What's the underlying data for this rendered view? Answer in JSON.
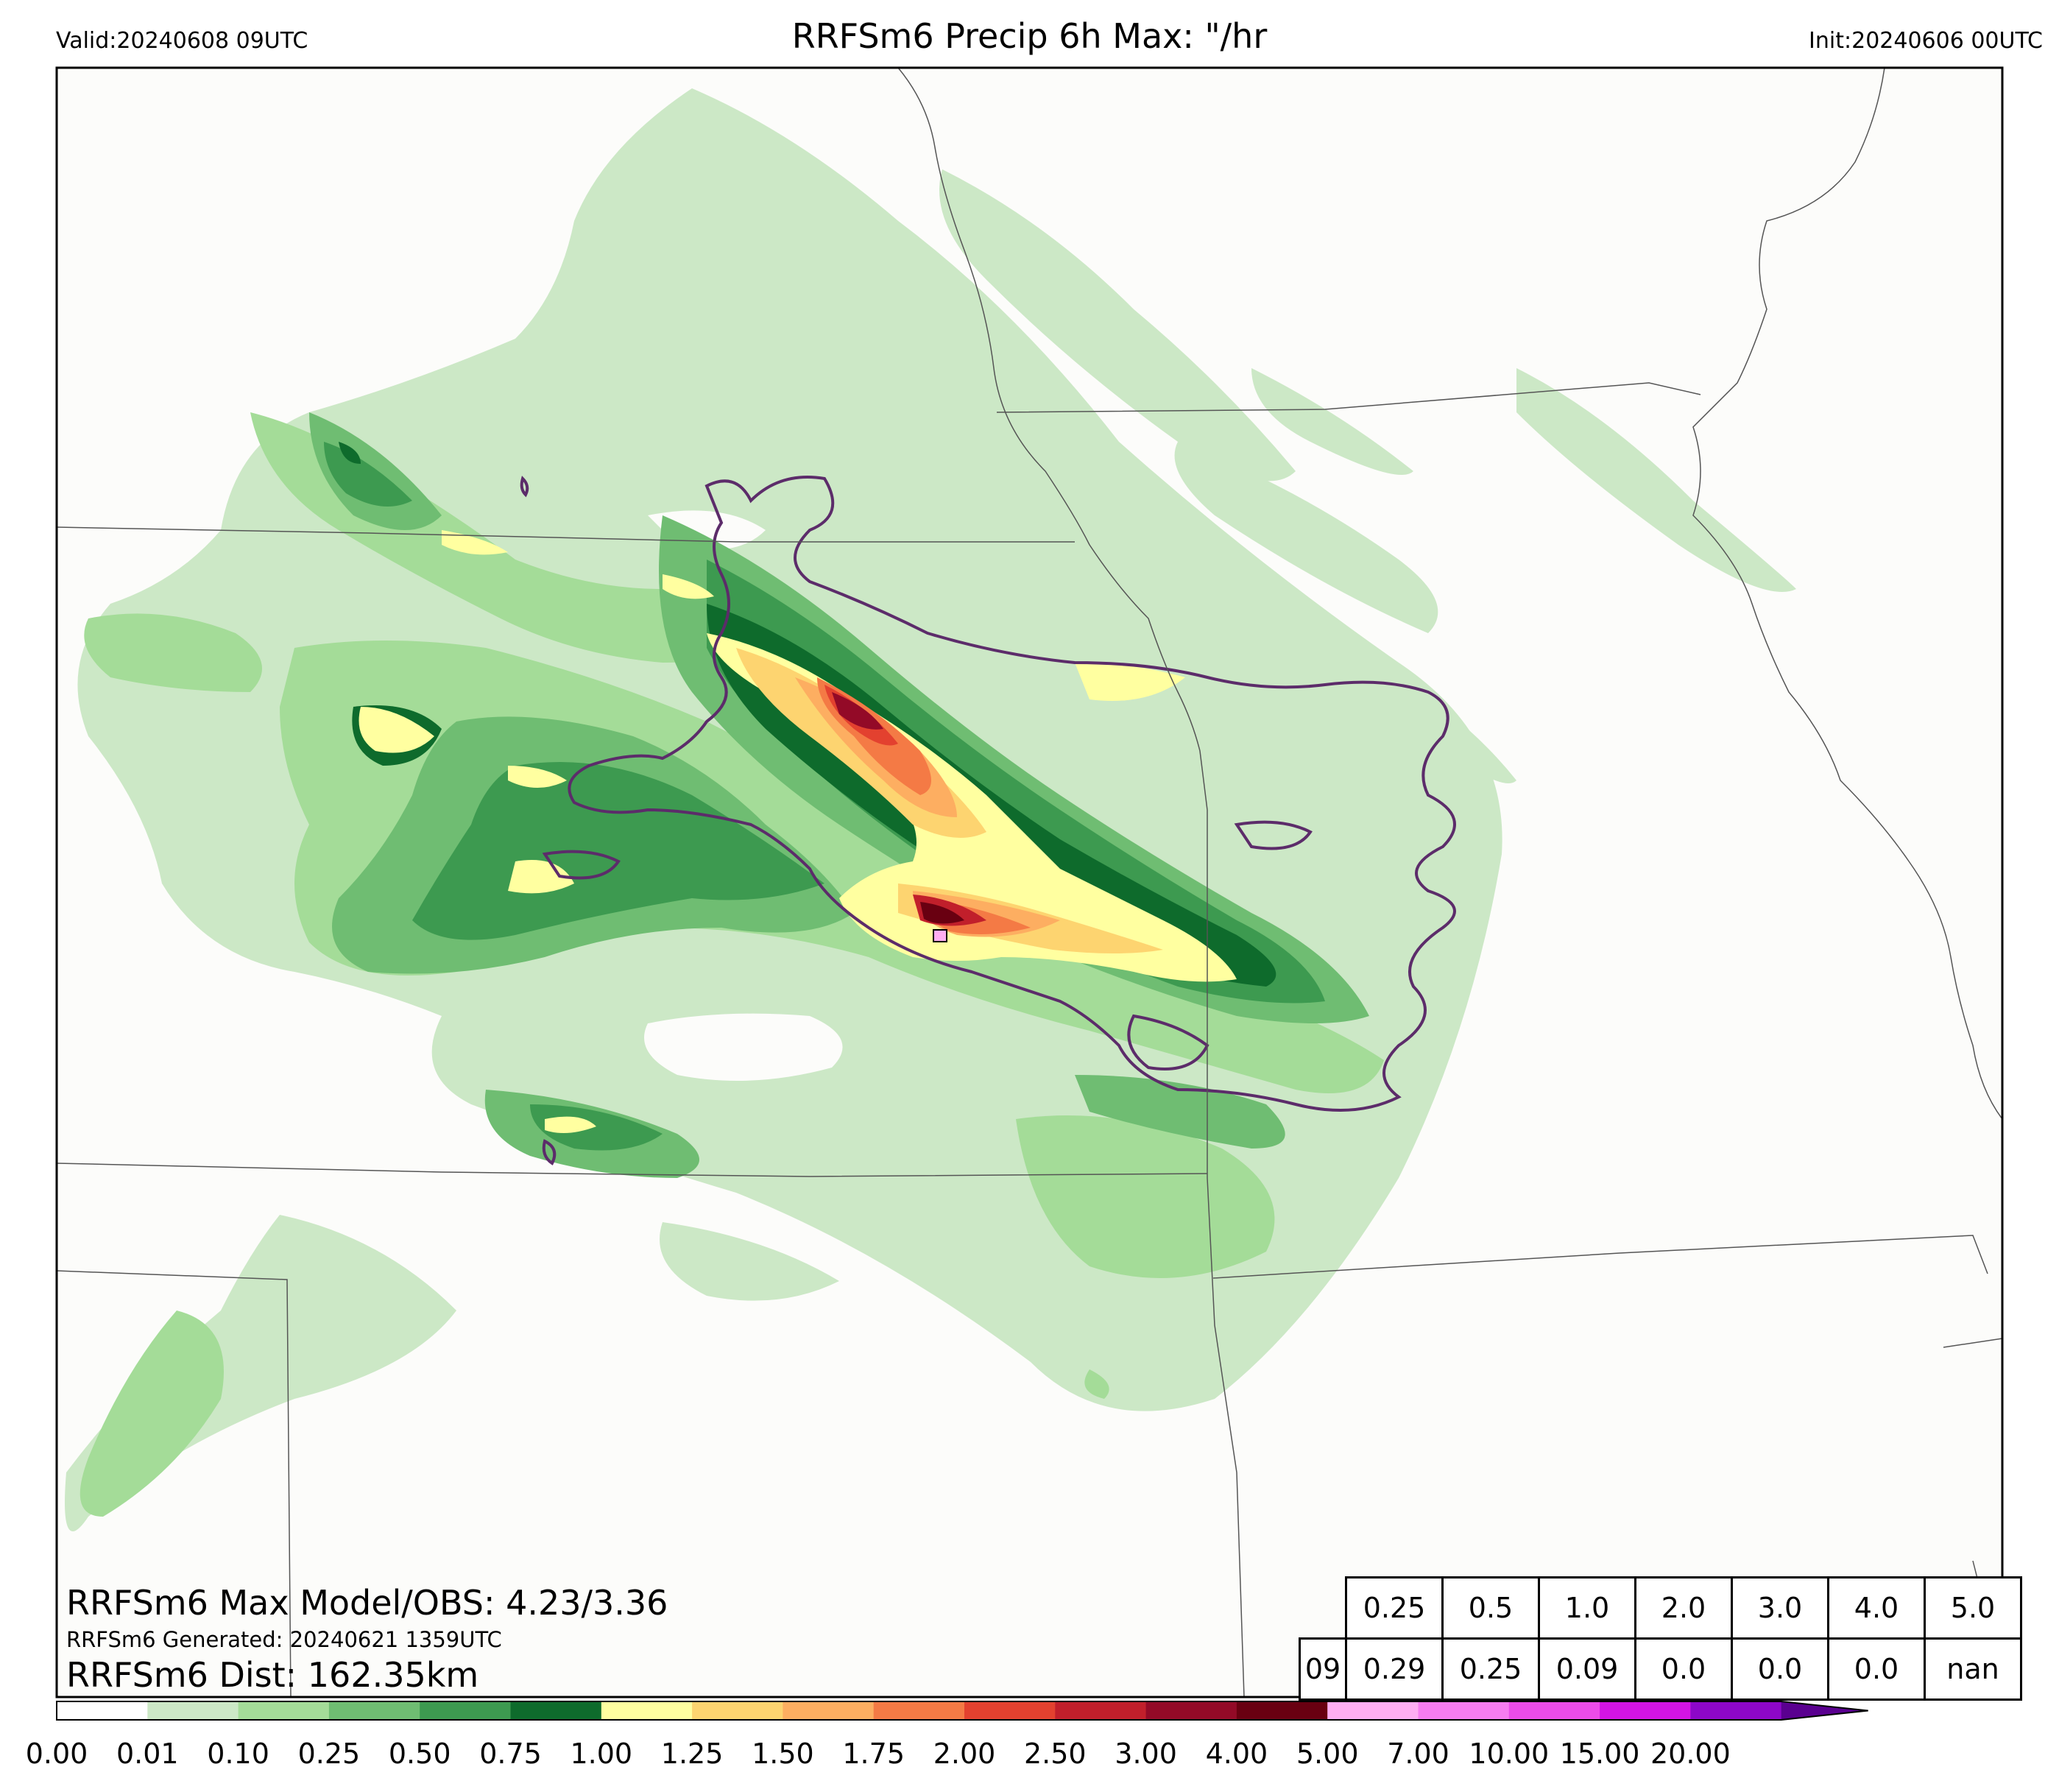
{
  "header": {
    "valid": "Valid:20240608 09UTC",
    "title": "RRFSm6 Precip 6h Max: \"/hr",
    "init": "Init:20240606 00UTC"
  },
  "stats": {
    "max_line": "RRFSm6 Max Model/OBS: 4.23/3.36",
    "generated_line": "RRFSm6 Generated: 20240621 1359UTC",
    "dist_line": "RRFSm6 Dist: 162.35km"
  },
  "chart_data": {
    "type": "heatmap",
    "title": "RRFSm6 Precip 6h Max: \"/hr",
    "max_model": 4.23,
    "max_obs": 3.36,
    "distance_km": 162.35,
    "threshold_table": {
      "thresholds": [
        "0.25",
        "0.5",
        "1.0",
        "2.0",
        "3.0",
        "4.0",
        "5.0"
      ],
      "rows": [
        {
          "label": "09",
          "values": [
            "0.29",
            "0.25",
            "0.09",
            "0.0",
            "0.0",
            "0.0",
            "nan"
          ]
        }
      ]
    },
    "colorbar": {
      "ticks": [
        "0.00",
        "0.01",
        "0.10",
        "0.25",
        "0.50",
        "0.75",
        "1.00",
        "1.25",
        "1.50",
        "1.75",
        "2.00",
        "2.50",
        "3.00",
        "4.00",
        "5.00",
        "7.00",
        "10.00",
        "15.00",
        "20.00"
      ],
      "colors": [
        "#ffffff",
        "#cce8c6",
        "#a4dc98",
        "#6fbd72",
        "#3d9a50",
        "#0e6b2c",
        "#ffffa0",
        "#fdd470",
        "#fdae61",
        "#f47a45",
        "#e3412f",
        "#c11f2b",
        "#930a27",
        "#690011",
        "#ffaef2",
        "#f77df0",
        "#ec4ce9",
        "#d314e4",
        "#8d07c8"
      ],
      "extend_color": "#5a0090"
    }
  },
  "colors": {
    "map_bg": "#fcfcfa",
    "obs_contour": "#5c2c6a",
    "boundary": "#555555"
  }
}
